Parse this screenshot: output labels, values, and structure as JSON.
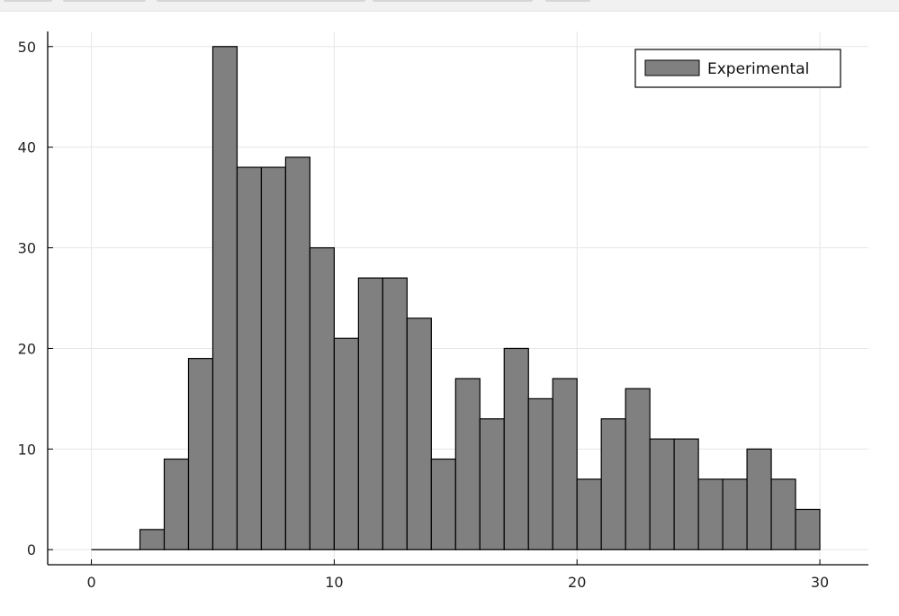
{
  "chart_data": {
    "type": "bar",
    "series": [
      {
        "name": "Experimental",
        "bin_edges": [
          0,
          1,
          2,
          3,
          4,
          5,
          6,
          7,
          8,
          9,
          10,
          11,
          12,
          13,
          14,
          15,
          16,
          17,
          18,
          19,
          20,
          21,
          22,
          23,
          24,
          25,
          26,
          27,
          28,
          29,
          30
        ],
        "values": [
          0,
          0,
          2,
          9,
          19,
          50,
          38,
          38,
          39,
          30,
          21,
          27,
          27,
          23,
          9,
          17,
          13,
          20,
          15,
          17,
          7,
          13,
          16,
          11,
          11,
          7,
          7,
          10,
          7,
          4
        ],
        "color": "#808080"
      }
    ],
    "xlim": [
      -1.8,
      32
    ],
    "ylim": [
      -1.5,
      51.5
    ],
    "xticks": [
      0,
      10,
      20,
      30
    ],
    "yticks": [
      0,
      10,
      20,
      30,
      40,
      50
    ],
    "grid": true,
    "legend": "top-right",
    "title": "",
    "xlabel": "",
    "ylabel": ""
  }
}
